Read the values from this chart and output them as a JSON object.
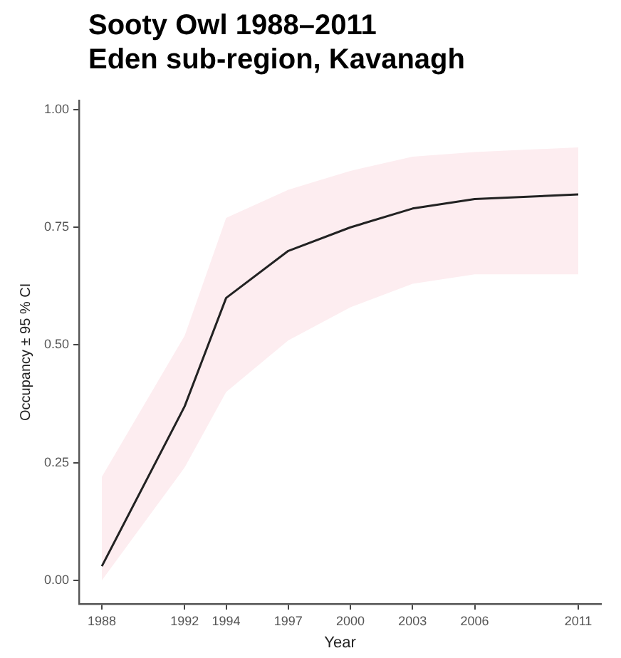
{
  "chart_data": {
    "type": "line",
    "title": "Sooty Owl 1988–2011\nEden sub-region, Kavanagh",
    "xlabel": "Year",
    "ylabel": "Occupancy ± 95 % CI",
    "x": [
      1988,
      1992,
      1994,
      1997,
      2000,
      2003,
      2006,
      2011
    ],
    "series": [
      {
        "color": "#222222",
        "values": [
          0.03,
          0.37,
          0.6,
          0.7,
          0.75,
          0.79,
          0.81,
          0.82
        ],
        "lower": [
          0.0,
          0.24,
          0.4,
          0.51,
          0.58,
          0.63,
          0.65,
          0.65
        ],
        "upper": [
          0.22,
          0.52,
          0.77,
          0.83,
          0.87,
          0.9,
          0.91,
          0.92
        ]
      }
    ],
    "xlim": [
      1986.9,
      2012.1
    ],
    "xticks": [
      1988,
      1992,
      1994,
      1997,
      2000,
      2003,
      2006,
      2011
    ],
    "ylim": [
      -0.05,
      1.02
    ],
    "yticks": [
      {
        "value": 0,
        "label": "0.00"
      },
      {
        "value": 0.25,
        "label": "0.25"
      },
      {
        "value": 0.5,
        "label": "0.50"
      },
      {
        "value": 0.75,
        "label": "0.75"
      },
      {
        "value": 1,
        "label": "1.00"
      }
    ],
    "grid": false,
    "legend": false,
    "marker": "none",
    "line_style": "solid"
  }
}
